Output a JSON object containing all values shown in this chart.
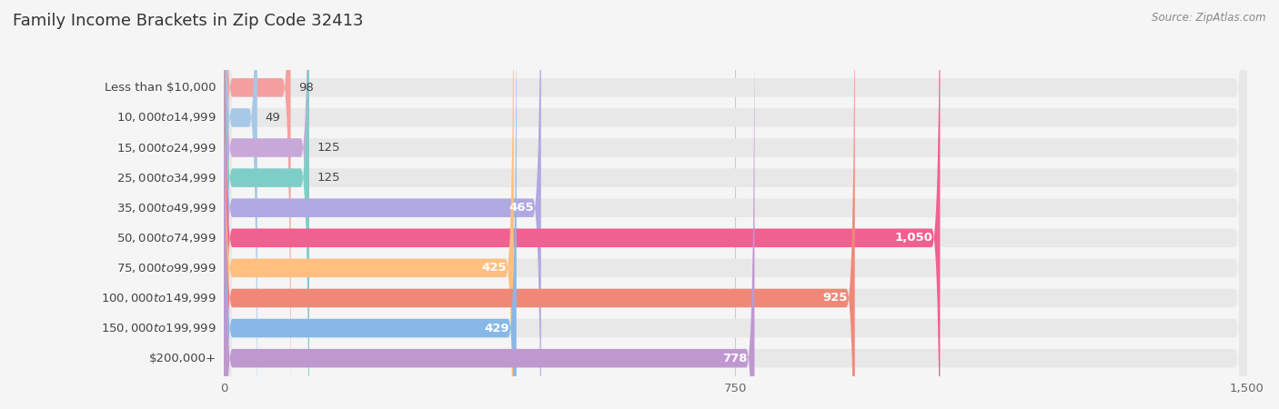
{
  "title": "Family Income Brackets in Zip Code 32413",
  "source": "Source: ZipAtlas.com",
  "categories": [
    "Less than $10,000",
    "$10,000 to $14,999",
    "$15,000 to $24,999",
    "$25,000 to $34,999",
    "$35,000 to $49,999",
    "$50,000 to $74,999",
    "$75,000 to $99,999",
    "$100,000 to $149,999",
    "$150,000 to $199,999",
    "$200,000+"
  ],
  "values": [
    98,
    49,
    125,
    125,
    465,
    1050,
    425,
    925,
    429,
    778
  ],
  "bar_colors": [
    "#F4A0A0",
    "#A8C8E8",
    "#C8A8D8",
    "#7ECEC8",
    "#B0A8E0",
    "#F06090",
    "#FFBF80",
    "#F08878",
    "#88B8E8",
    "#C098D0"
  ],
  "value_labels": [
    "98",
    "49",
    "125",
    "125",
    "465",
    "1,050",
    "425",
    "925",
    "429",
    "778"
  ],
  "xlim": [
    0,
    1500
  ],
  "xticks": [
    0,
    750,
    1500
  ],
  "xtick_labels": [
    "0",
    "750",
    "1,500"
  ],
  "background_color": "#f5f5f5",
  "bar_bg_color": "#e8e8e8",
  "title_fontsize": 13,
  "label_fontsize": 9.5,
  "value_fontsize": 9.5,
  "bar_height": 0.62,
  "large_val_threshold": 400,
  "label_color": "#444444",
  "value_inside_color": "#ffffff",
  "value_outside_color": "#444444"
}
